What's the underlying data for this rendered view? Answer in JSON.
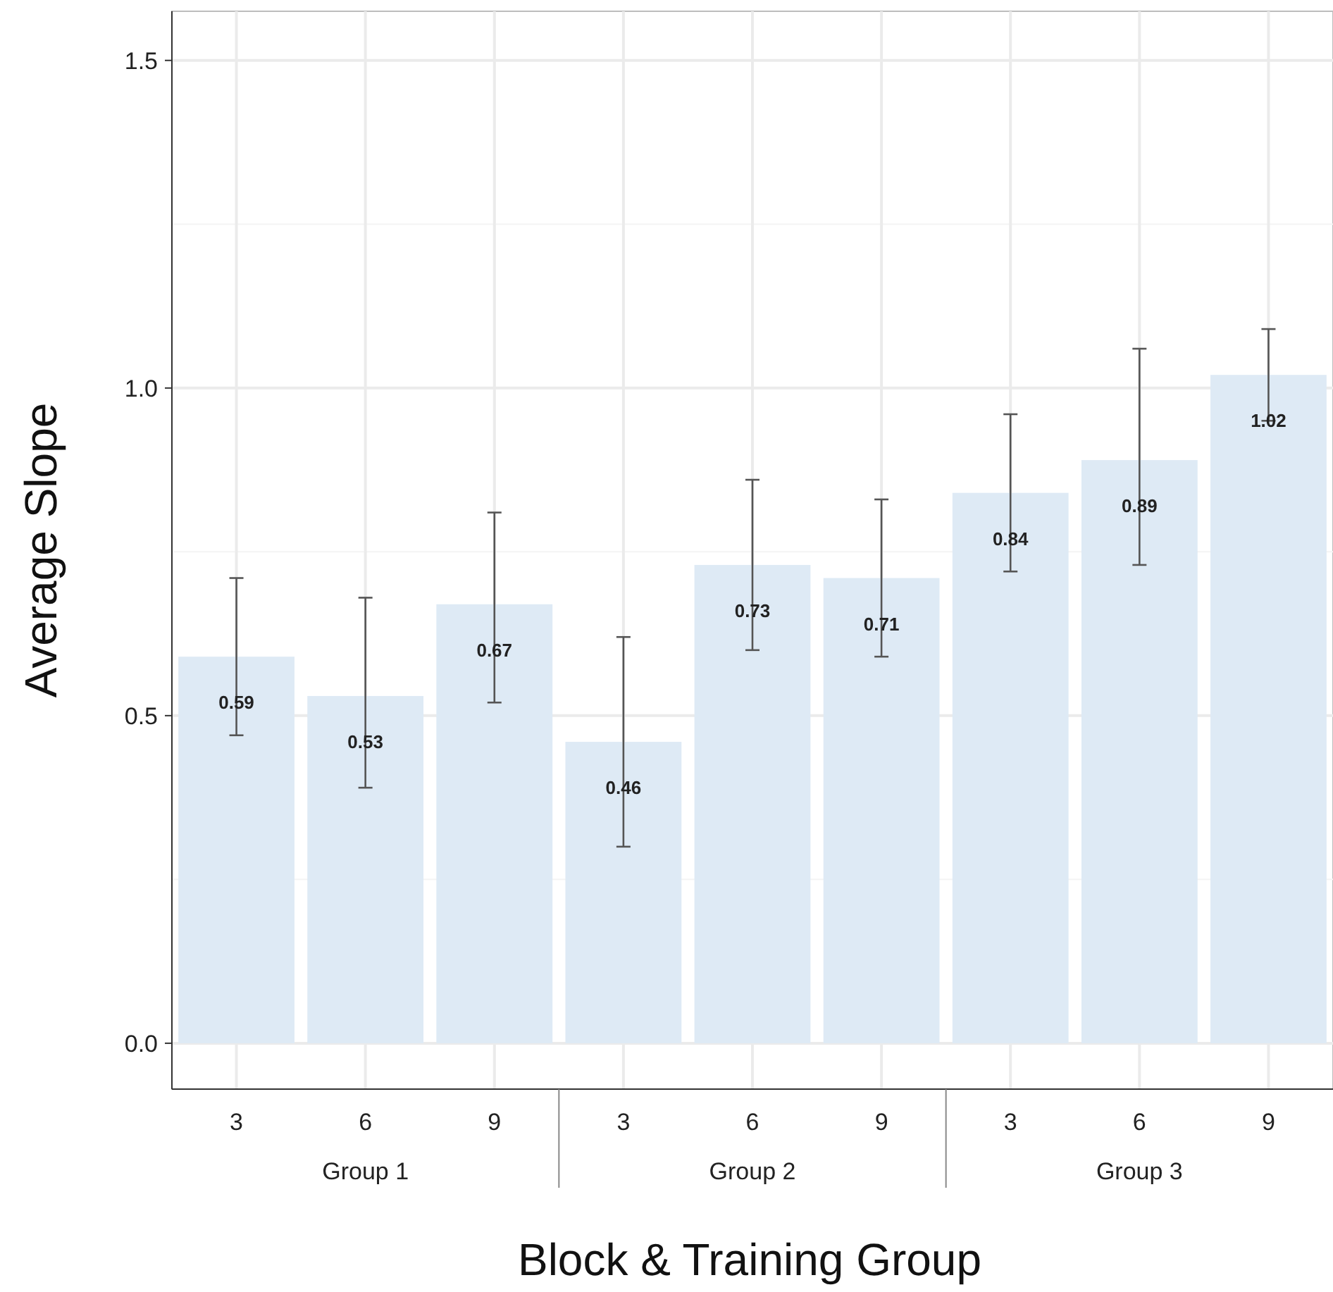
{
  "chart_data": {
    "type": "bar",
    "xlabel": "Block & Training Group",
    "ylabel": "Average Slope",
    "categories": [
      "3",
      "6",
      "9",
      "3",
      "6",
      "9",
      "3",
      "6",
      "9"
    ],
    "values": [
      0.59,
      0.53,
      0.67,
      0.46,
      0.73,
      0.71,
      0.84,
      0.89,
      1.02
    ],
    "errors": [
      [
        0.47,
        0.71
      ],
      [
        0.39,
        0.68
      ],
      [
        0.52,
        0.81
      ],
      [
        0.3,
        0.62
      ],
      [
        0.6,
        0.86
      ],
      [
        0.59,
        0.83
      ],
      [
        0.72,
        0.96
      ],
      [
        0.73,
        1.06
      ],
      [
        0.95,
        1.09
      ]
    ],
    "color": "#deeaf5",
    "data_labels": true,
    "annotations": [
      "Group 1",
      "Group 2",
      "Group 3"
    ],
    "ylim": [
      -0.07,
      1.575
    ],
    "yticks": [
      {
        "value": 0,
        "label": "0.0"
      },
      0.5,
      {
        "value": 1,
        "label": "1.0"
      },
      1.5
    ],
    "grid": true
  }
}
